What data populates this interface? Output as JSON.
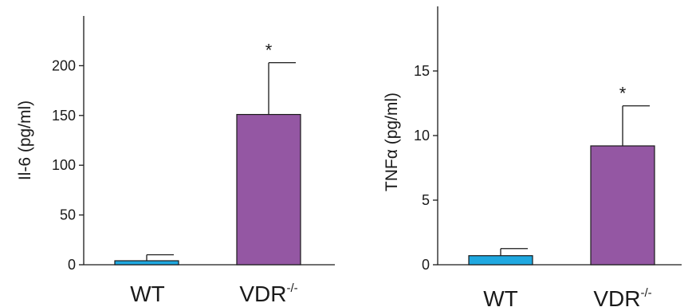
{
  "chart_data": [
    {
      "type": "bar",
      "categories": [
        "WT",
        "VDR"
      ],
      "category_superscripts": [
        "",
        "-/-"
      ],
      "values": [
        4,
        151
      ],
      "errors": [
        6,
        52
      ],
      "significance": [
        "",
        "*"
      ],
      "ylabel": "Il-6 (pg/ml)",
      "xlabel": "",
      "title": "",
      "ylim": [
        0,
        250
      ],
      "yticks": [
        0,
        50,
        100,
        150,
        200
      ],
      "colors": [
        "#1fa8e0",
        "#9457a3"
      ],
      "grid": false
    },
    {
      "type": "bar",
      "categories": [
        "WT",
        "VDR"
      ],
      "category_superscripts": [
        "",
        "-/-"
      ],
      "values": [
        0.7,
        9.2
      ],
      "errors": [
        0.55,
        3.1
      ],
      "significance": [
        "",
        "*"
      ],
      "ylabel": "TNFα (pg/ml)",
      "xlabel": "",
      "title": "",
      "ylim": [
        0,
        20
      ],
      "yticks": [
        0,
        5,
        10,
        15
      ],
      "colors": [
        "#1fa8e0",
        "#9457a3"
      ],
      "grid": false
    }
  ]
}
